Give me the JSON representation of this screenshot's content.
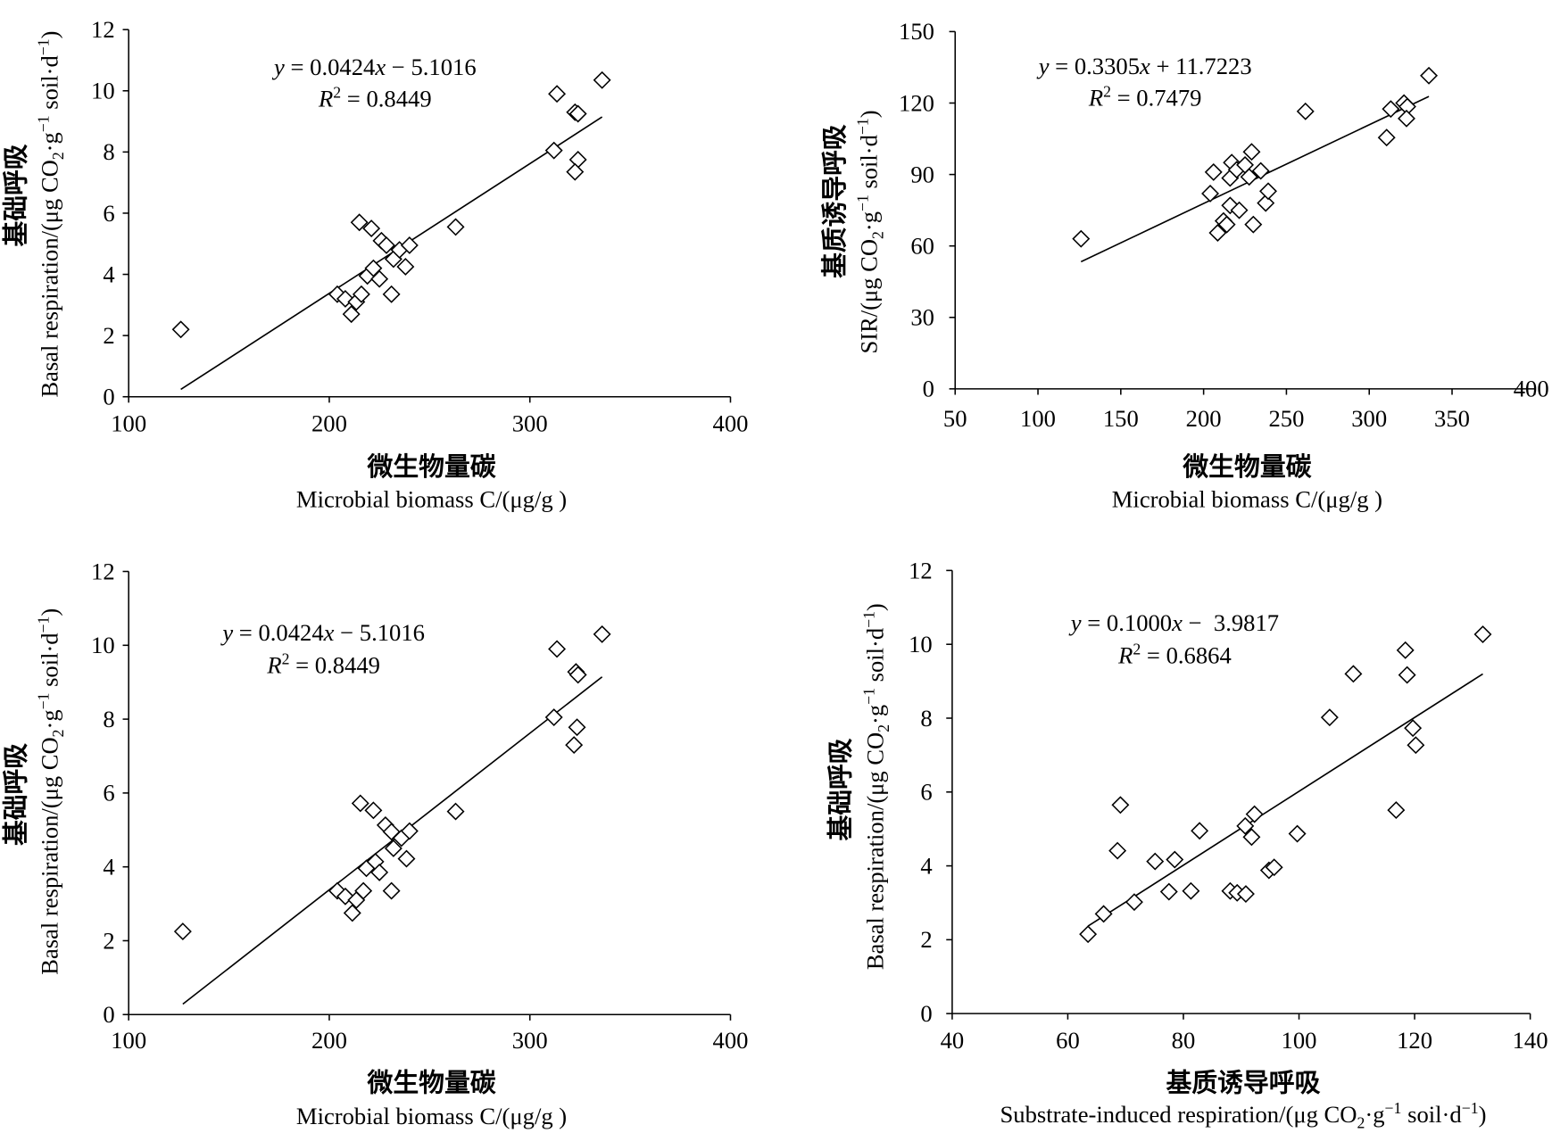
{
  "chart_data": [
    {
      "type": "scatter",
      "equation": "y = 0.0424x − 5.1016",
      "r2": "R² = 0.8449",
      "trendline": {
        "slope": 0.0424,
        "intercept": -5.1016
      },
      "xlim": [
        100,
        400
      ],
      "xticks": [
        100,
        200,
        300,
        400
      ],
      "ylim": [
        0,
        12
      ],
      "yticks": [
        0,
        2,
        4,
        6,
        8,
        10,
        12
      ],
      "xlabel": [
        "微生物量碳",
        "Microbial biomass C/(μg/g )"
      ],
      "ylabel": [
        "基础呼吸",
        "Basal respiration/(μg CO₂·g⁻¹ soil·d⁻¹)"
      ],
      "points": [
        [
          126,
          2.2
        ],
        [
          204,
          3.35
        ],
        [
          208,
          3.2
        ],
        [
          211,
          2.7
        ],
        [
          213.5,
          3.1
        ],
        [
          216,
          3.35
        ],
        [
          215,
          5.7
        ],
        [
          221,
          5.5
        ],
        [
          219,
          3.95
        ],
        [
          222,
          4.2
        ],
        [
          225,
          3.85
        ],
        [
          226,
          5.1
        ],
        [
          228.5,
          4.95
        ],
        [
          231,
          3.35
        ],
        [
          232,
          4.5
        ],
        [
          235,
          4.8
        ],
        [
          238,
          4.25
        ],
        [
          240,
          4.95
        ],
        [
          263,
          5.55
        ],
        [
          312,
          8.05
        ],
        [
          313.5,
          9.9
        ],
        [
          322.5,
          9.3
        ],
        [
          324,
          9.25
        ],
        [
          324,
          7.75
        ],
        [
          322.5,
          7.35
        ],
        [
          336,
          10.35
        ]
      ]
    },
    {
      "type": "scatter",
      "equation": "y = 0.3305x + 11.7223",
      "r2": "R² = 0.7479",
      "trendline": {
        "slope": 0.3305,
        "intercept": 11.7223
      },
      "xlim": [
        50,
        400
      ],
      "xticks": [
        50,
        100,
        150,
        200,
        250,
        300,
        350,
        400
      ],
      "ylim": [
        0,
        150
      ],
      "yticks": [
        0,
        30,
        60,
        90,
        120,
        150
      ],
      "xlabel": [
        "微生物量碳",
        "Microbial biomass C/(μg/g )"
      ],
      "ylabel": [
        "基质诱导呼吸",
        "SIR/(μg CO₂·g⁻¹ soil·d⁻¹)"
      ],
      "points": [
        [
          126,
          63
        ],
        [
          204,
          82
        ],
        [
          206,
          91
        ],
        [
          208.5,
          65.5
        ],
        [
          212,
          70.5
        ],
        [
          214,
          69
        ],
        [
          216,
          77
        ],
        [
          216,
          88.5
        ],
        [
          217,
          95
        ],
        [
          221.5,
          75
        ],
        [
          220,
          92
        ],
        [
          225,
          94
        ],
        [
          227.5,
          89
        ],
        [
          229,
          99.5
        ],
        [
          230,
          69
        ],
        [
          234.5,
          91.5
        ],
        [
          237.5,
          78
        ],
        [
          239,
          83
        ],
        [
          261.5,
          116.5
        ],
        [
          310.5,
          105.5
        ],
        [
          313,
          117.5
        ],
        [
          321,
          120
        ],
        [
          323,
          118.5
        ],
        [
          322.5,
          113.5
        ],
        [
          336,
          131.5
        ]
      ]
    },
    {
      "type": "scatter",
      "equation": "y = 0.0424x − 5.1016",
      "r2": "R² = 0.8449",
      "trendline": {
        "slope": 0.0424,
        "intercept": -5.1016
      },
      "xlim": [
        100,
        400
      ],
      "xticks": [
        100,
        200,
        300,
        400
      ],
      "ylim": [
        0,
        12
      ],
      "yticks": [
        0,
        2,
        4,
        6,
        8,
        10,
        12
      ],
      "xlabel": [
        "微生物量碳",
        "Microbial biomass C/(μg/g )"
      ],
      "ylabel": [
        "基础呼吸",
        "Basal respiration/(μg CO₂·g⁻¹ soil·d⁻¹)"
      ],
      "points": [
        [
          127,
          2.25
        ],
        [
          204,
          3.35
        ],
        [
          208,
          3.2
        ],
        [
          211.5,
          2.75
        ],
        [
          213.5,
          3.1
        ],
        [
          217,
          3.35
        ],
        [
          215.5,
          5.72
        ],
        [
          222,
          5.53
        ],
        [
          218.5,
          3.96
        ],
        [
          223,
          4.14
        ],
        [
          225,
          3.85
        ],
        [
          228,
          5.13
        ],
        [
          231,
          4.95
        ],
        [
          231,
          3.35
        ],
        [
          232,
          4.5
        ],
        [
          236,
          4.78
        ],
        [
          238.5,
          4.22
        ],
        [
          240,
          4.97
        ],
        [
          263,
          5.5
        ],
        [
          312,
          8.05
        ],
        [
          313.5,
          9.9
        ],
        [
          323,
          9.28
        ],
        [
          324,
          9.2
        ],
        [
          323.5,
          7.78
        ],
        [
          322,
          7.3
        ],
        [
          336,
          10.3
        ]
      ]
    },
    {
      "type": "scatter",
      "equation": "y = 0.1000x −  3.9817",
      "r2": "R² = 0.6864",
      "trendline": {
        "slope": 0.1,
        "intercept": -3.9817
      },
      "xlim": [
        40,
        140
      ],
      "xticks": [
        40,
        60,
        80,
        100,
        120,
        140
      ],
      "ylim": [
        0,
        12
      ],
      "yticks": [
        0,
        2,
        4,
        6,
        8,
        10,
        12
      ],
      "xlabel": [
        "基质诱导呼吸",
        "Substrate-induced respiration/(μg CO₂·g⁻¹ soil·d⁻¹)"
      ],
      "ylabel": [
        "基础呼吸",
        "Basal respiration/(μg CO₂·g⁻¹ soil·d⁻¹)"
      ],
      "points": [
        [
          63.5,
          2.15
        ],
        [
          66.2,
          2.7
        ],
        [
          71.5,
          3.02
        ],
        [
          68.6,
          4.41
        ],
        [
          69.1,
          5.65
        ],
        [
          75.1,
          4.12
        ],
        [
          77.5,
          3.3
        ],
        [
          78.5,
          4.17
        ],
        [
          81.3,
          3.32
        ],
        [
          82.8,
          4.95
        ],
        [
          88.1,
          3.32
        ],
        [
          89.3,
          3.27
        ],
        [
          90.8,
          3.24
        ],
        [
          90.7,
          5.08
        ],
        [
          91.8,
          4.78
        ],
        [
          92.3,
          5.4
        ],
        [
          94.8,
          3.88
        ],
        [
          95.7,
          3.96
        ],
        [
          99.7,
          4.87
        ],
        [
          105.3,
          8.02
        ],
        [
          109.4,
          9.2
        ],
        [
          118.4,
          9.84
        ],
        [
          118.7,
          9.17
        ],
        [
          119.7,
          7.73
        ],
        [
          120.2,
          7.27
        ],
        [
          116.8,
          5.51
        ],
        [
          131.8,
          10.27
        ]
      ]
    }
  ]
}
